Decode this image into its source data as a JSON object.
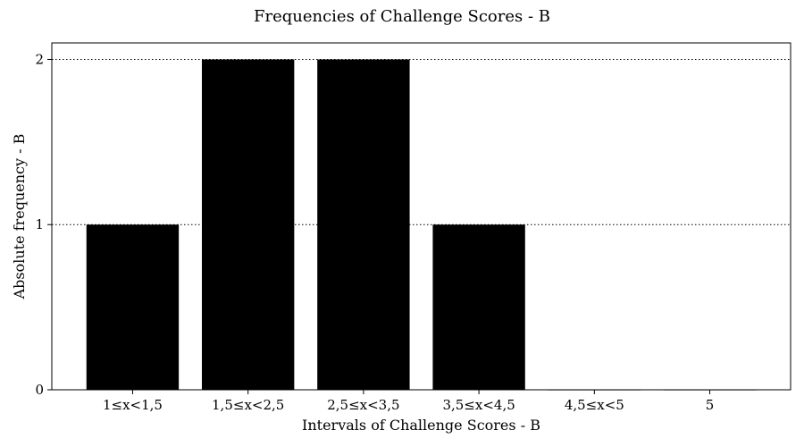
{
  "chart_data": {
    "type": "bar",
    "title": "Frequencies of Challenge Scores - B",
    "xlabel": "Intervals of Challenge Scores - B",
    "ylabel": "Absolute frequency - B",
    "categories": [
      "1≤x<1,5",
      "1,5≤x<2,5",
      "2,5≤x<3,5",
      "3,5≤x<4,5",
      "4,5≤x<5",
      "5"
    ],
    "values": [
      1,
      2,
      2,
      1,
      0,
      0
    ],
    "ylim": [
      0,
      2.1
    ],
    "yticks": [
      0,
      1,
      2
    ],
    "grid": "horizontal dotted",
    "bar_color": "#000000"
  }
}
